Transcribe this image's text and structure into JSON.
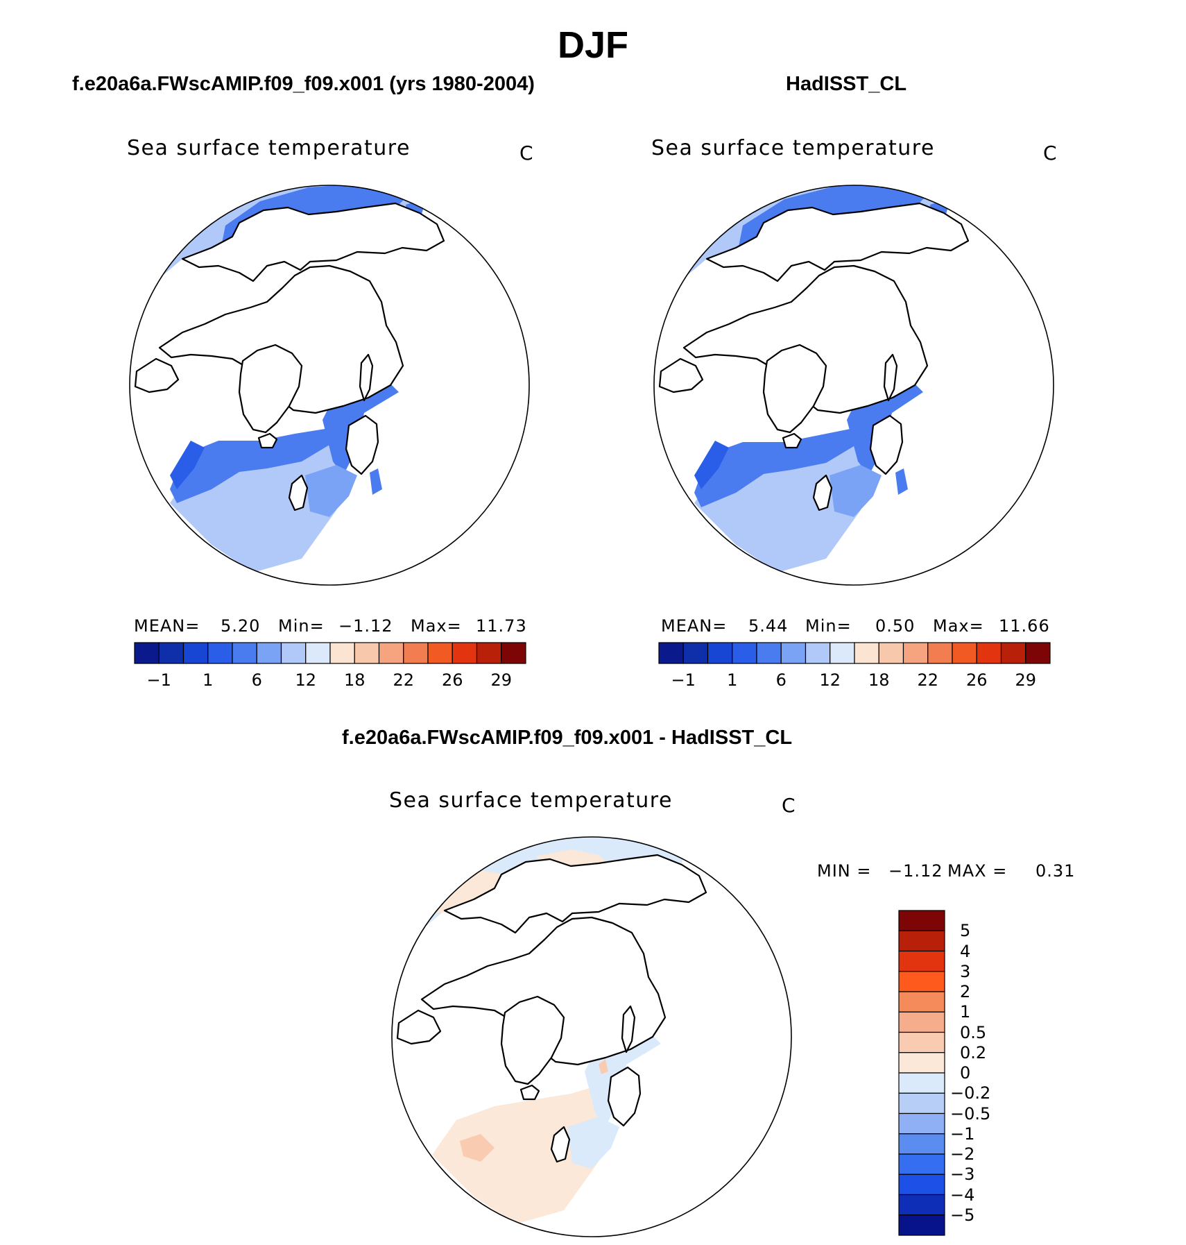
{
  "title": "DJF",
  "colors": {
    "abs_scale": [
      "#0a1a8c",
      "#0f2eaa",
      "#1746d4",
      "#2a5ee8",
      "#4a7cf0",
      "#7aa2f5",
      "#b1c9f8",
      "#dbe9fa",
      "#fbe4d2",
      "#f8c8ad",
      "#f5a47f",
      "#f27d50",
      "#f25a23",
      "#e2350f",
      "#b8200a",
      "#7d0505"
    ],
    "diff_scale": [
      "#7d0505",
      "#b8200a",
      "#e2350f",
      "#ff5a1e",
      "#f58a5a",
      "#f6ad8c",
      "#f9ccb2",
      "#fce8d8",
      "#dbeafa",
      "#b7cff7",
      "#8fb0f4",
      "#5b8cf0",
      "#356ef0",
      "#1d50e6",
      "#0f2eb8",
      "#07138a"
    ]
  },
  "panels": [
    {
      "subtitle": "f.e20a6a.FWscAMIP.f09_f09.x001 (yrs 1980-2004)",
      "title": "Sea surface temperature",
      "units": "C",
      "stats": {
        "mean_label": "MEAN=",
        "mean": "5.20",
        "min_label": "Min=",
        "min": "−1.12",
        "max_label": "Max=",
        "max": "11.73"
      }
    },
    {
      "subtitle": "HadISST_CL",
      "title": "Sea surface temperature",
      "units": "C",
      "stats": {
        "mean_label": "MEAN=",
        "mean": "5.44",
        "min_label": "Min=",
        "min": "0.50",
        "max_label": "Max=",
        "max": "11.66"
      }
    },
    {
      "subtitle": "f.e20a6a.FWscAMIP.f09_f09.x001 - HadISST_CL",
      "title": "Sea surface temperature",
      "units": "C",
      "minmax": {
        "min_label": "MIN =",
        "min": "−1.12",
        "max_label": "MAX =",
        "max": "0.31"
      }
    }
  ],
  "chart_data": [
    {
      "type": "heatmap",
      "projection": "north polar stereographic",
      "title": "Sea surface temperature",
      "units": "C",
      "subtitle": "f.e20a6a.FWscAMIP.f09_f09.x001 (yrs 1980-2004)",
      "mean": 5.2,
      "min": -1.12,
      "max": 11.73,
      "colorbar_ticks": [
        "−1",
        "1",
        "6",
        "12",
        "18",
        "22",
        "26",
        "29"
      ],
      "colorbar_bins": 16
    },
    {
      "type": "heatmap",
      "projection": "north polar stereographic",
      "title": "Sea surface temperature",
      "units": "C",
      "subtitle": "HadISST_CL",
      "mean": 5.44,
      "min": 0.5,
      "max": 11.66,
      "colorbar_ticks": [
        "−1",
        "1",
        "6",
        "12",
        "18",
        "22",
        "26",
        "29"
      ],
      "colorbar_bins": 16
    },
    {
      "type": "heatmap",
      "projection": "north polar stereographic",
      "title": "Sea surface temperature",
      "units": "C",
      "subtitle": "f.e20a6a.FWscAMIP.f09_f09.x001 - HadISST_CL",
      "min": -1.12,
      "max": 0.31,
      "colorbar_ticks": [
        "5",
        "4",
        "3",
        "2",
        "1",
        "0.5",
        "0.2",
        "0",
        "−0.2",
        "−0.5",
        "−1",
        "−2",
        "−3",
        "−4",
        "−5"
      ],
      "colorbar_bins": 16
    }
  ]
}
